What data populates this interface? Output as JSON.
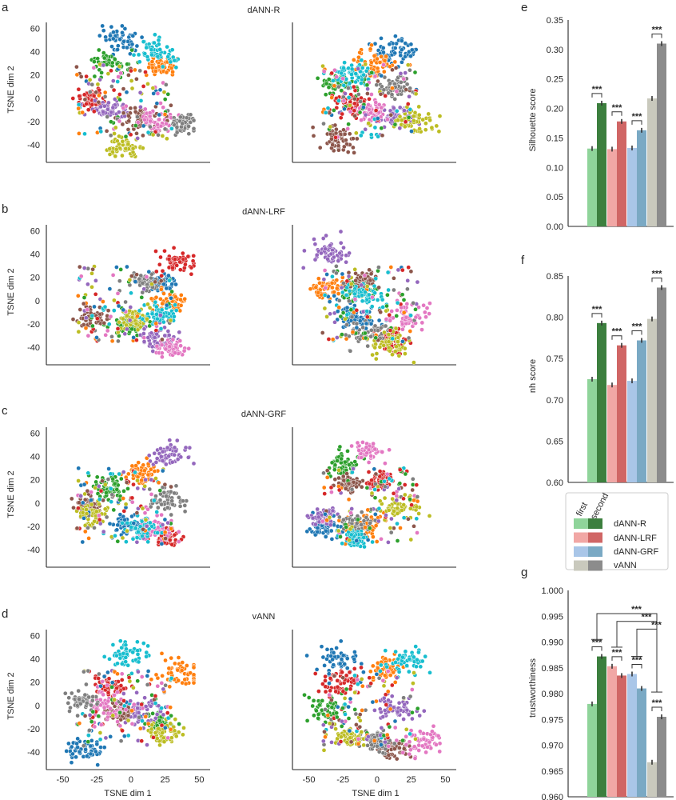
{
  "panel_letters": {
    "a": "a",
    "b": "b",
    "c": "c",
    "d": "d",
    "e": "e",
    "f": "f",
    "g": "g"
  },
  "colors": {
    "dANN-R": {
      "first": "#8fd49a",
      "second": "#3c7f3e"
    },
    "dANN-LRF": {
      "first": "#f1a7a5",
      "second": "#d06665"
    },
    "dANN-GRF": {
      "first": "#a9c6e8",
      "second": "#7aa9c4"
    },
    "vANN": {
      "first": "#c9c9bd",
      "second": "#8c8c8c"
    },
    "classes": [
      "#1f77b4",
      "#ff7f0e",
      "#2ca02c",
      "#d62728",
      "#9467bd",
      "#8c564b",
      "#e377c2",
      "#7f7f7f",
      "#bcbd22",
      "#17becf"
    ]
  },
  "chart_data": [
    {
      "id": "a",
      "type": "scatter",
      "title": "dANN-R",
      "xlabel": "",
      "ylabel": "TSNE dim 2",
      "yticks": [
        "60",
        "40",
        "20",
        "0",
        "-20",
        "-40"
      ],
      "ylim": [
        -55,
        65
      ],
      "xlim": [
        -62,
        58
      ],
      "embeddings": [
        "first",
        "second"
      ],
      "cluster_centers": {
        "first": [
          [
            -8,
            50
          ],
          [
            22,
            28
          ],
          [
            -15,
            30
          ],
          [
            -30,
            0
          ],
          [
            -15,
            -10
          ],
          [
            5,
            -20
          ],
          [
            20,
            -20
          ],
          [
            38,
            -22
          ],
          [
            -5,
            -42
          ],
          [
            20,
            40
          ]
        ],
        "second": [
          [
            15,
            40
          ],
          [
            0,
            30
          ],
          [
            -28,
            12
          ],
          [
            -20,
            -5
          ],
          [
            15,
            -15
          ],
          [
            -28,
            -35
          ],
          [
            -5,
            -12
          ],
          [
            12,
            10
          ],
          [
            30,
            -20
          ],
          [
            -18,
            20
          ]
        ]
      }
    },
    {
      "id": "b",
      "type": "scatter",
      "title": "dANN-LRF",
      "xlabel": "",
      "ylabel": "TSNE dim 2",
      "yticks": [
        "60",
        "40",
        "20",
        "0",
        "-20",
        "-40"
      ],
      "ylim": [
        -55,
        65
      ],
      "xlim": [
        -62,
        58
      ],
      "embeddings": [
        "first",
        "second"
      ]
    },
    {
      "id": "c",
      "type": "scatter",
      "title": "dANN-GRF",
      "xlabel": "",
      "ylabel": "TSNE dim 2",
      "yticks": [
        "60",
        "40",
        "20",
        "0",
        "-20",
        "-40"
      ],
      "ylim": [
        -55,
        65
      ],
      "xlim": [
        -62,
        58
      ],
      "embeddings": [
        "first",
        "second"
      ]
    },
    {
      "id": "d",
      "type": "scatter",
      "title": "vANN",
      "xlabel": "TSNE dim 1",
      "ylabel": "TSNE dim 2",
      "yticks": [
        "60",
        "40",
        "20",
        "0",
        "-20",
        "-40"
      ],
      "xticks": [
        "-50",
        "-25",
        "0",
        "25",
        "50"
      ],
      "ylim": [
        -55,
        65
      ],
      "xlim": [
        -62,
        58
      ],
      "embeddings": [
        "first",
        "second"
      ]
    },
    {
      "id": "e",
      "type": "bar",
      "ylabel": "Silhouette score",
      "ylim": [
        0,
        0.35
      ],
      "yticks": [
        "0.35",
        "0.30",
        "0.25",
        "0.20",
        "0.15",
        "0.10",
        "0.05",
        "0.00"
      ],
      "series": [
        {
          "name": "first",
          "values": [
            0.132,
            0.131,
            0.133,
            0.217
          ]
        },
        {
          "name": "second",
          "values": [
            0.209,
            0.178,
            0.163,
            0.31
          ]
        }
      ],
      "categories": [
        "dANN-R",
        "dANN-LRF",
        "dANN-GRF",
        "vANN"
      ],
      "significance": "***"
    },
    {
      "id": "f",
      "type": "bar",
      "ylabel": "nh score",
      "ylim": [
        0.6,
        0.85
      ],
      "yticks": [
        "0.85",
        "0.80",
        "0.75",
        "0.70",
        "0.65",
        "0.60"
      ],
      "series": [
        {
          "name": "first",
          "values": [
            0.725,
            0.718,
            0.723,
            0.798
          ]
        },
        {
          "name": "second",
          "values": [
            0.793,
            0.766,
            0.772,
            0.836
          ]
        }
      ],
      "categories": [
        "dANN-R",
        "dANN-LRF",
        "dANN-GRF",
        "vANN"
      ],
      "significance": "***"
    },
    {
      "id": "g",
      "type": "bar",
      "ylabel": "trustworthiness",
      "ylim": [
        0.96,
        1.0
      ],
      "yticks": [
        "1.000",
        "0.995",
        "0.990",
        "0.985",
        "0.980",
        "0.975",
        "0.970",
        "0.965",
        "0.960"
      ],
      "series": [
        {
          "name": "first",
          "values": [
            0.978,
            0.9853,
            0.9838,
            0.9667
          ]
        },
        {
          "name": "second",
          "values": [
            0.9872,
            0.9835,
            0.981,
            0.9755
          ]
        }
      ],
      "categories": [
        "dANN-R",
        "dANN-LRF",
        "dANN-GRF",
        "vANN"
      ],
      "significance": "***"
    }
  ],
  "legend": {
    "headers": [
      "first",
      "second"
    ],
    "entries": [
      "dANN-R",
      "dANN-LRF",
      "dANN-GRF",
      "vANN"
    ]
  }
}
